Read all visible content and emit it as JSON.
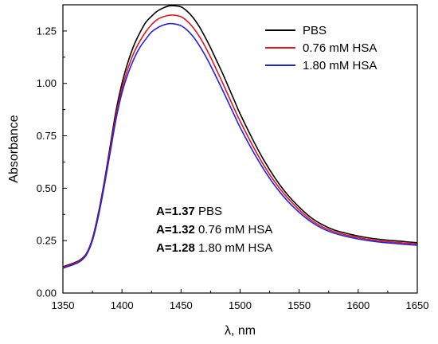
{
  "chart_data": {
    "type": "line",
    "title": "",
    "xlabel": "λ, nm",
    "ylabel": "Absorbance",
    "xlim": [
      1350,
      1650
    ],
    "ylim": [
      0,
      1.375
    ],
    "xticks": [
      1350,
      1400,
      1450,
      1500,
      1550,
      1600,
      1650
    ],
    "xtick_labels": [
      "1350",
      "1400",
      "1450",
      "1500",
      "1550",
      "1600",
      "1650"
    ],
    "yticks": [
      0,
      0.25,
      0.5,
      0.75,
      1.0,
      1.25
    ],
    "ytick_labels": [
      "0.00",
      "0.25",
      "0.50",
      "0.75",
      "1.00",
      "1.25"
    ],
    "grid": false,
    "legend_position": "top-right",
    "x": [
      1350,
      1355,
      1360,
      1365,
      1370,
      1375,
      1380,
      1385,
      1390,
      1395,
      1400,
      1405,
      1410,
      1415,
      1420,
      1425,
      1430,
      1435,
      1440,
      1445,
      1450,
      1455,
      1460,
      1465,
      1470,
      1475,
      1480,
      1485,
      1490,
      1495,
      1500,
      1510,
      1520,
      1530,
      1540,
      1550,
      1560,
      1570,
      1580,
      1590,
      1600,
      1610,
      1620,
      1630,
      1640,
      1650
    ],
    "series": [
      {
        "name": "PBS",
        "color": "#000000",
        "values": [
          0.125,
          0.135,
          0.145,
          0.16,
          0.19,
          0.26,
          0.38,
          0.53,
          0.7,
          0.87,
          1.0,
          1.1,
          1.18,
          1.24,
          1.29,
          1.32,
          1.345,
          1.36,
          1.37,
          1.37,
          1.365,
          1.345,
          1.315,
          1.275,
          1.225,
          1.17,
          1.11,
          1.05,
          0.985,
          0.92,
          0.855,
          0.74,
          0.635,
          0.545,
          0.47,
          0.41,
          0.36,
          0.325,
          0.3,
          0.285,
          0.272,
          0.262,
          0.255,
          0.25,
          0.245,
          0.24
        ]
      },
      {
        "name": "0.76 mM HSA",
        "color": "#e8141a",
        "values": [
          0.122,
          0.132,
          0.142,
          0.157,
          0.187,
          0.255,
          0.372,
          0.52,
          0.685,
          0.85,
          0.975,
          1.07,
          1.145,
          1.2,
          1.245,
          1.28,
          1.305,
          1.318,
          1.325,
          1.325,
          1.318,
          1.298,
          1.268,
          1.228,
          1.18,
          1.125,
          1.065,
          1.005,
          0.942,
          0.88,
          0.82,
          0.71,
          0.61,
          0.525,
          0.455,
          0.397,
          0.349,
          0.315,
          0.292,
          0.277,
          0.265,
          0.255,
          0.248,
          0.243,
          0.238,
          0.234
        ]
      },
      {
        "name": "1.80 mM HSA",
        "color": "#1f1ff0",
        "values": [
          0.118,
          0.128,
          0.138,
          0.153,
          0.183,
          0.25,
          0.365,
          0.51,
          0.67,
          0.83,
          0.955,
          1.045,
          1.115,
          1.17,
          1.21,
          1.245,
          1.265,
          1.278,
          1.285,
          1.283,
          1.275,
          1.255,
          1.225,
          1.185,
          1.138,
          1.085,
          1.028,
          0.97,
          0.91,
          0.85,
          0.79,
          0.685,
          0.59,
          0.508,
          0.44,
          0.385,
          0.34,
          0.307,
          0.285,
          0.27,
          0.258,
          0.249,
          0.242,
          0.237,
          0.232,
          0.228
        ]
      }
    ],
    "annotations": [
      {
        "bold": "A=1.37",
        "text": " PBS"
      },
      {
        "bold": "A=1.32",
        "text": " 0.76 mM HSA"
      },
      {
        "bold": "A=1.28",
        "text": " 1.80 mM HSA"
      }
    ]
  }
}
